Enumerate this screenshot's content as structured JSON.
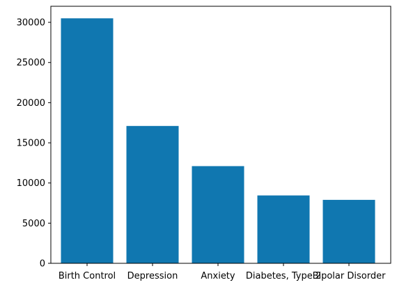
{
  "chart_data": {
    "type": "bar",
    "title": "",
    "xlabel": "",
    "ylabel": "",
    "categories": [
      "Birth Control",
      "Depression",
      "Anxiety",
      "Diabetes, Type 2",
      "Bipolar Disorder"
    ],
    "values": [
      30500,
      17100,
      12100,
      8450,
      7900
    ],
    "ylim": [
      0,
      32000
    ],
    "yticks": [
      0,
      5000,
      10000,
      15000,
      20000,
      25000,
      30000
    ],
    "grid": false,
    "legend": "none",
    "bar_color": "#1077b0"
  }
}
